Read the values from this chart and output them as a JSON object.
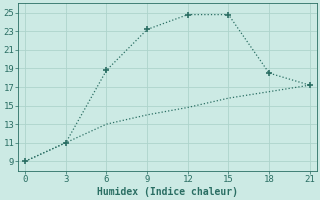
{
  "line1_x": [
    0,
    3,
    6,
    9,
    12,
    15,
    18,
    21
  ],
  "line1_y": [
    9,
    11,
    18.8,
    23.2,
    24.8,
    24.8,
    18.5,
    17.2
  ],
  "line2_x": [
    0,
    3,
    6,
    9,
    12,
    15,
    18,
    21
  ],
  "line2_y": [
    9,
    11,
    13.0,
    14.0,
    14.8,
    15.8,
    16.5,
    17.2
  ],
  "color": "#2a6e63",
  "bg_color": "#cceae4",
  "grid_color": "#add4cc",
  "xlabel": "Humidex (Indice chaleur)",
  "xlim": [
    -0.5,
    21.5
  ],
  "ylim": [
    8,
    26
  ],
  "xticks": [
    0,
    3,
    6,
    9,
    12,
    15,
    18,
    21
  ],
  "yticks": [
    9,
    11,
    13,
    15,
    17,
    19,
    21,
    23,
    25
  ],
  "axis_fontsize": 7,
  "tick_fontsize": 6.5
}
